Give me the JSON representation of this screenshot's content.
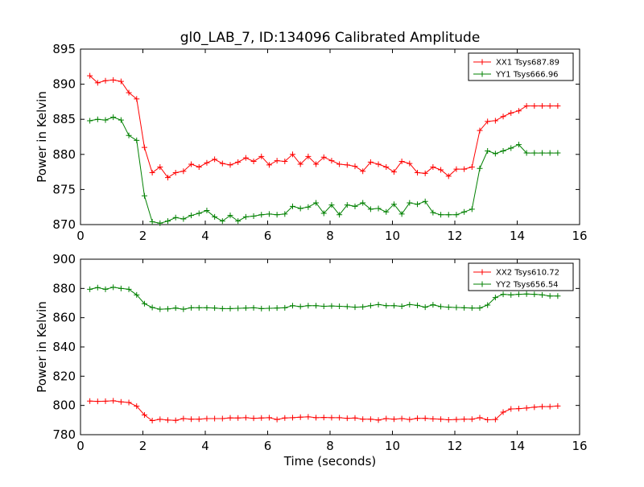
{
  "title": "gl0_LAB_7, ID:134096 Calibrated Amplitude",
  "xlabel": "Time (seconds)",
  "colors": {
    "red": "#ff0000",
    "green": "#008000"
  },
  "chart_data": [
    {
      "type": "line",
      "title": "gl0_LAB_7, ID:134096 Calibrated Amplitude",
      "xlabel": "",
      "ylabel": "Power in Kelvin",
      "xlim": [
        0,
        16
      ],
      "ylim": [
        870,
        895
      ],
      "xticks": [
        "0",
        "2",
        "4",
        "6",
        "8",
        "10",
        "12",
        "14",
        "16"
      ],
      "yticks": [
        "870",
        "875",
        "880",
        "885",
        "890",
        "895"
      ],
      "grid": false,
      "legend_placement": "top-right",
      "x": [
        0.3,
        0.55,
        0.8,
        1.05,
        1.3,
        1.55,
        1.8,
        2.05,
        2.3,
        2.55,
        2.8,
        3.05,
        3.3,
        3.55,
        3.8,
        4.05,
        4.3,
        4.55,
        4.8,
        5.05,
        5.3,
        5.55,
        5.8,
        6.05,
        6.3,
        6.55,
        6.8,
        7.05,
        7.3,
        7.55,
        7.8,
        8.05,
        8.3,
        8.55,
        8.8,
        9.05,
        9.3,
        9.55,
        9.8,
        10.05,
        10.3,
        10.55,
        10.8,
        11.05,
        11.3,
        11.55,
        11.8,
        12.05,
        12.3,
        12.55,
        12.8,
        13.05,
        13.3,
        13.55,
        13.8,
        14.05,
        14.3,
        14.55,
        14.8,
        15.05,
        15.3
      ],
      "series": [
        {
          "name": "XX1 Tsys687.89",
          "color": "#ff0000",
          "values": [
            891.2,
            890.2,
            890.5,
            890.6,
            890.4,
            888.8,
            887.9,
            881.0,
            877.4,
            878.2,
            876.7,
            877.4,
            877.6,
            878.6,
            878.2,
            878.8,
            879.3,
            878.7,
            878.5,
            878.9,
            879.5,
            879.0,
            879.7,
            878.5,
            879.1,
            879.0,
            880.0,
            878.6,
            879.7,
            878.6,
            879.6,
            879.1,
            878.6,
            878.5,
            878.3,
            877.6,
            878.9,
            878.6,
            878.2,
            877.5,
            879.0,
            878.7,
            877.4,
            877.3,
            878.2,
            877.8,
            876.9,
            877.9,
            877.9,
            878.2,
            883.4,
            884.7,
            884.8,
            885.4,
            885.9,
            886.2,
            886.9,
            886.9,
            886.9,
            886.9,
            886.9
          ]
        },
        {
          "name": "YY1 Tsys666.96",
          "color": "#008000",
          "values": [
            884.8,
            885.0,
            884.9,
            885.3,
            884.9,
            882.7,
            882.0,
            874.1,
            870.4,
            870.2,
            870.5,
            871.0,
            870.8,
            871.3,
            871.6,
            872.0,
            871.1,
            870.5,
            871.3,
            870.5,
            871.1,
            871.2,
            871.4,
            871.5,
            871.4,
            871.5,
            872.6,
            872.3,
            872.5,
            873.1,
            871.6,
            872.8,
            871.4,
            872.8,
            872.6,
            873.1,
            872.2,
            872.3,
            871.8,
            872.9,
            871.5,
            873.1,
            872.9,
            873.3,
            871.7,
            871.4,
            871.4,
            871.4,
            871.8,
            872.2,
            878.0,
            880.5,
            880.1,
            880.5,
            880.9,
            881.4,
            880.2,
            880.2,
            880.2,
            880.2,
            880.2
          ]
        }
      ]
    },
    {
      "type": "line",
      "title": "",
      "xlabel": "Time (seconds)",
      "ylabel": "Power in Kelvin",
      "xlim": [
        0,
        16
      ],
      "ylim": [
        780,
        900
      ],
      "xticks": [
        "0",
        "2",
        "4",
        "6",
        "8",
        "10",
        "12",
        "14",
        "16"
      ],
      "yticks": [
        "780",
        "800",
        "820",
        "840",
        "860",
        "880",
        "900"
      ],
      "grid": false,
      "legend_placement": "top-right",
      "x": [
        0.3,
        0.55,
        0.8,
        1.05,
        1.3,
        1.55,
        1.8,
        2.05,
        2.3,
        2.55,
        2.8,
        3.05,
        3.3,
        3.55,
        3.8,
        4.05,
        4.3,
        4.55,
        4.8,
        5.05,
        5.3,
        5.55,
        5.8,
        6.05,
        6.3,
        6.55,
        6.8,
        7.05,
        7.3,
        7.55,
        7.8,
        8.05,
        8.3,
        8.55,
        8.8,
        9.05,
        9.3,
        9.55,
        9.8,
        10.05,
        10.3,
        10.55,
        10.8,
        11.05,
        11.3,
        11.55,
        11.8,
        12.05,
        12.3,
        12.55,
        12.8,
        13.05,
        13.3,
        13.55,
        13.8,
        14.05,
        14.3,
        14.55,
        14.8,
        15.05,
        15.3
      ],
      "series": [
        {
          "name": "XX2 Tsys610.72",
          "color": "#ff0000",
          "values": [
            803.0,
            802.8,
            802.9,
            803.2,
            802.4,
            802.0,
            799.5,
            793.5,
            789.6,
            790.5,
            790.0,
            789.8,
            791.0,
            790.6,
            790.6,
            791.0,
            791.0,
            791.0,
            791.5,
            791.4,
            791.6,
            791.2,
            791.4,
            791.6,
            790.4,
            791.4,
            791.6,
            792.0,
            792.2,
            791.6,
            791.8,
            791.6,
            791.6,
            791.2,
            791.4,
            790.6,
            790.6,
            790.0,
            791.0,
            790.6,
            791.0,
            790.4,
            791.2,
            791.2,
            790.8,
            790.6,
            790.2,
            790.4,
            790.6,
            790.6,
            791.6,
            790.2,
            790.4,
            795.4,
            797.6,
            797.8,
            798.2,
            798.8,
            799.2,
            799.2,
            799.6
          ]
        },
        {
          "name": "YY2 Tsys656.54",
          "color": "#008000",
          "values": [
            879.4,
            880.6,
            879.4,
            880.8,
            880.0,
            879.4,
            875.6,
            869.6,
            867.0,
            865.8,
            866.0,
            866.6,
            865.8,
            866.8,
            866.8,
            866.8,
            866.6,
            866.2,
            866.2,
            866.4,
            866.6,
            866.8,
            866.2,
            866.4,
            866.6,
            866.8,
            868.2,
            867.6,
            868.2,
            868.2,
            867.8,
            868.0,
            867.8,
            867.6,
            867.2,
            867.4,
            868.2,
            869.0,
            868.2,
            868.2,
            867.8,
            869.0,
            868.4,
            867.2,
            868.8,
            867.6,
            867.2,
            867.0,
            866.8,
            866.6,
            866.6,
            868.6,
            873.8,
            876.0,
            875.6,
            876.0,
            876.2,
            876.0,
            875.6,
            874.8,
            874.8
          ]
        }
      ]
    }
  ]
}
